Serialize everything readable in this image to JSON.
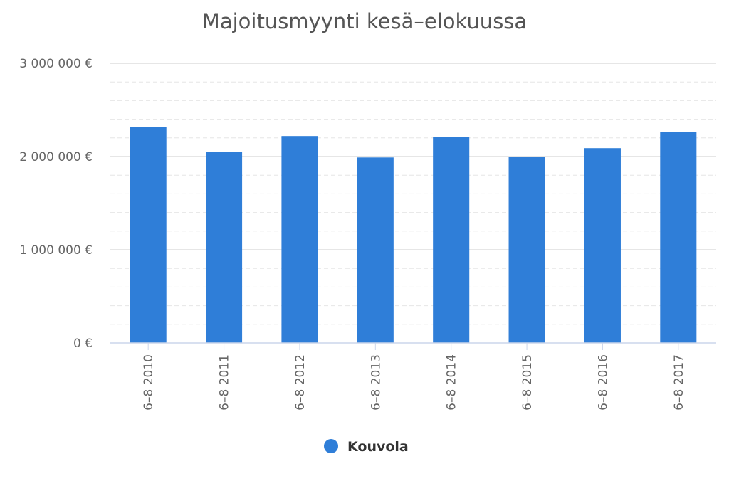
{
  "chart_data": {
    "type": "bar",
    "title": "Majoitusmyynti kesä–elokuussa",
    "categories": [
      "6–8 2010",
      "6–8 2011",
      "6–8 2012",
      "6–8 2013",
      "6–8 2014",
      "6–8 2015",
      "6–8 2016",
      "6–8 2017"
    ],
    "series": [
      {
        "name": "Kouvola",
        "color": "#2f7ed8",
        "values": [
          2320000,
          2050000,
          2220000,
          1990000,
          2210000,
          2000000,
          2090000,
          2260000
        ]
      }
    ],
    "ylim": [
      0,
      3000000
    ],
    "yticks": [
      0,
      1000000,
      2000000,
      3000000
    ],
    "ytick_labels": [
      "0 €",
      "1 000 000 €",
      "2 000 000 €",
      "3 000 000 €"
    ],
    "minor_gridlines": true,
    "legend_position": "bottom-center",
    "xtick_rotation": "vertical"
  }
}
